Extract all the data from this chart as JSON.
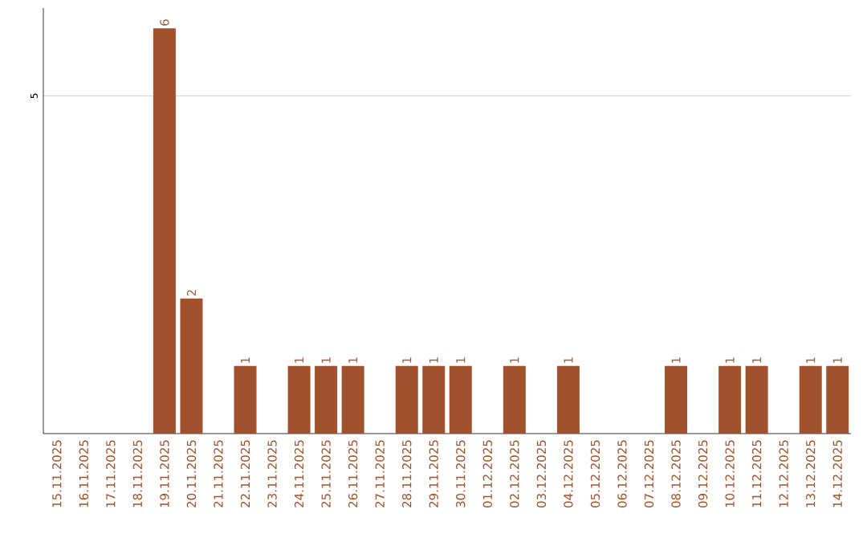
{
  "chart_data": {
    "type": "bar",
    "categories": [
      "15.11.2025",
      "16.11.2025",
      "17.11.2025",
      "18.11.2025",
      "19.11.2025",
      "20.11.2025",
      "21.11.2025",
      "22.11.2025",
      "23.11.2025",
      "24.11.2025",
      "25.11.2025",
      "26.11.2025",
      "27.11.2025",
      "28.11.2025",
      "29.11.2025",
      "30.11.2025",
      "01.12.2025",
      "02.12.2025",
      "03.12.2025",
      "04.12.2025",
      "05.12.2025",
      "06.12.2025",
      "07.12.2025",
      "08.12.2025",
      "09.12.2025",
      "10.12.2025",
      "11.12.2025",
      "12.12.2025",
      "13.12.2025",
      "14.12.2025"
    ],
    "values": [
      0,
      0,
      0,
      0,
      6,
      2,
      0,
      1,
      0,
      1,
      1,
      1,
      0,
      1,
      1,
      1,
      0,
      1,
      0,
      1,
      0,
      0,
      0,
      1,
      0,
      1,
      1,
      0,
      1,
      1
    ],
    "value_labels": [
      null,
      null,
      null,
      null,
      "6",
      "2",
      null,
      "1",
      null,
      "1",
      "1",
      "1",
      null,
      "1",
      "1",
      "1",
      null,
      "1",
      null,
      "1",
      null,
      null,
      null,
      "1",
      null,
      "1",
      "1",
      null,
      "1",
      "1"
    ],
    "color": "#a0522d",
    "ylim": [
      0,
      6.3
    ],
    "yticks": [
      5
    ],
    "grid": "y"
  }
}
